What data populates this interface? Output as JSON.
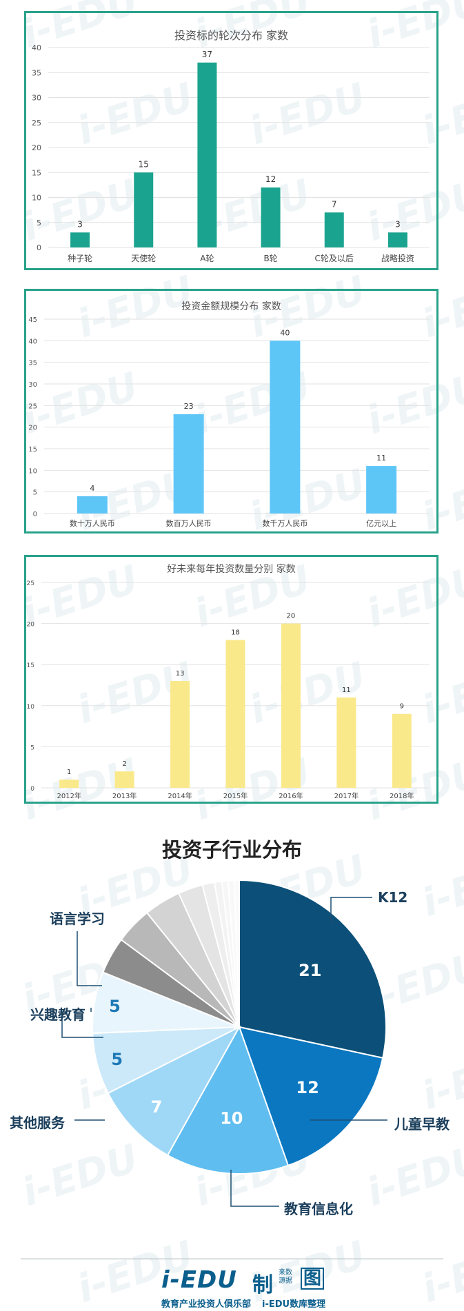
{
  "charts": [
    {
      "title": "投资标的轮次分布 家数",
      "color": "#1aa48f",
      "ylim": [
        0,
        40
      ],
      "yticks": [
        0,
        5,
        10,
        15,
        20,
        25,
        30,
        35,
        40
      ]
    },
    {
      "title": "投资金额规模分布 家数",
      "color": "#5ec6f7",
      "ylim": [
        0,
        45
      ],
      "yticks": [
        0,
        5,
        10,
        15,
        20,
        25,
        30,
        35,
        40,
        45
      ]
    },
    {
      "title": "好未来每年投资数量分别 家数",
      "color": "#f9e98a",
      "ylim": [
        0,
        25
      ],
      "yticks": [
        0,
        5,
        10,
        15,
        20,
        25
      ]
    }
  ],
  "pie": {
    "title": "投资子行业分布",
    "labels": {
      "k12": "K12",
      "early": "儿童早教",
      "info": "教育信息化",
      "other": "其他服务",
      "interest": "兴趣教育",
      "lang": "语言学习"
    }
  },
  "footer": {
    "logo": "i-EDU",
    "slogan": "教育产业投资人俱乐部",
    "zhi": "制",
    "source": "来数 源据",
    "tu": "图",
    "slogan2": "i-EDU数库整理"
  },
  "chart_data": [
    {
      "type": "bar",
      "title": "投资标的轮次分布 家数",
      "categories": [
        "种子轮",
        "天使轮",
        "A轮",
        "B轮",
        "C轮及以后",
        "战略投资"
      ],
      "values": [
        3,
        15,
        37,
        12,
        7,
        3
      ],
      "ylim": [
        0,
        40
      ],
      "grid": true
    },
    {
      "type": "bar",
      "title": "投资金额规模分布 家数",
      "categories": [
        "数十万人民币",
        "数百万人民币",
        "数千万人民币",
        "亿元以上"
      ],
      "values": [
        4,
        23,
        40,
        11
      ],
      "ylim": [
        0,
        45
      ],
      "grid": true
    },
    {
      "type": "bar",
      "title": "好未来每年投资数量分别 家数",
      "categories": [
        "2012年",
        "2013年",
        "2014年",
        "2015年",
        "2016年",
        "2017年",
        "2018年"
      ],
      "values": [
        1,
        2,
        13,
        18,
        20,
        11,
        9
      ],
      "ylim": [
        0,
        25
      ],
      "grid": true
    },
    {
      "type": "pie",
      "title": "投资子行业分布",
      "slices": [
        {
          "label": "K12",
          "value": 21,
          "color": "#0c5079"
        },
        {
          "label": "儿童早教",
          "value": 12,
          "color": "#0a77c0"
        },
        {
          "label": "教育信息化",
          "value": 10,
          "color": "#5fbdf0"
        },
        {
          "label": "其他服务",
          "value": 7,
          "color": "#9fd7f7"
        },
        {
          "label": "",
          "value": 5,
          "color": "#cce9fa"
        },
        {
          "label": "",
          "value": 5,
          "color": "#e9f5fc"
        },
        {
          "label": "",
          "value": 3,
          "color": "#8c8c8c"
        },
        {
          "label": "",
          "value": 3,
          "color": "#b8b8b8"
        },
        {
          "label": "",
          "value": 3,
          "color": "#d3d3d3"
        },
        {
          "label": "",
          "value": 2,
          "color": "#e4e4e4"
        },
        {
          "label": "",
          "value": 1,
          "color": "#eeeeee"
        },
        {
          "label": "",
          "value": 0.6,
          "color": "#f3f3f3"
        },
        {
          "label": "",
          "value": 0.5,
          "color": "#f6f6f6"
        },
        {
          "label": "",
          "value": 0.5,
          "color": "#f8f8f8"
        },
        {
          "label": "",
          "value": 0.4,
          "color": "#fafafa"
        }
      ]
    }
  ]
}
